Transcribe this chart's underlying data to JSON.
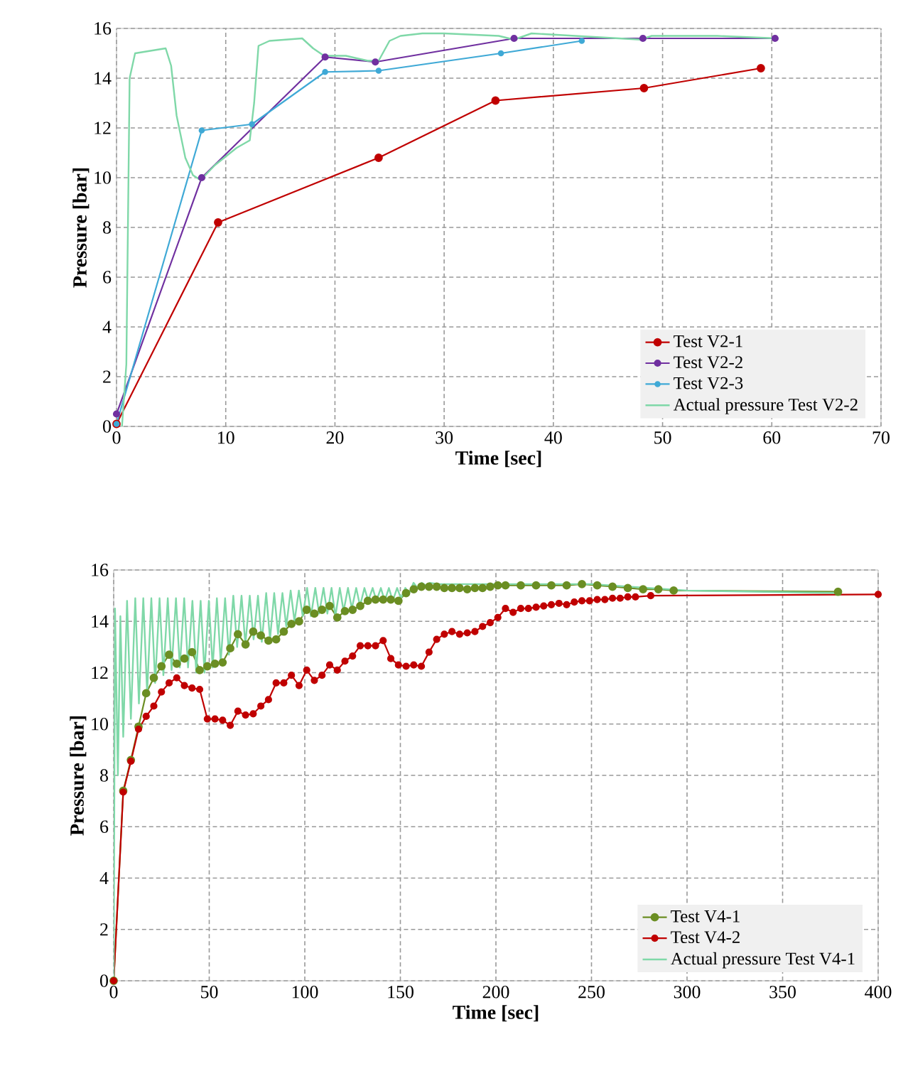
{
  "chart_data": [
    {
      "type": "line",
      "xlabel": "Time [sec]",
      "ylabel": "Pressure [bar]",
      "xlim": [
        0,
        70
      ],
      "ylim": [
        0,
        16
      ],
      "xticks": [
        0,
        10,
        20,
        30,
        40,
        50,
        60,
        70
      ],
      "yticks": [
        0,
        2,
        4,
        6,
        8,
        10,
        12,
        14,
        16
      ],
      "grid": true,
      "legend": "bottom right",
      "series": [
        {
          "name": "Test V2-1",
          "color": "#c00000",
          "marker": "circle",
          "x": [
            0,
            9.3,
            24,
            34.7,
            48.3,
            59
          ],
          "values": [
            0.1,
            8.2,
            10.8,
            13.1,
            13.6,
            14.4
          ]
        },
        {
          "name": "Test V2-2",
          "color": "#7030a0",
          "marker": "circle",
          "x": [
            0,
            7.8,
            19.1,
            23.7,
            36.4,
            48.2,
            60.3
          ],
          "values": [
            0.5,
            10.0,
            14.85,
            14.65,
            15.6,
            15.6,
            15.6
          ]
        },
        {
          "name": "Test V2-3",
          "color": "#3fa9d6",
          "marker": "circle",
          "x": [
            0,
            7.8,
            12.4,
            19.1,
            24.0,
            35.2,
            42.6
          ],
          "values": [
            0.1,
            11.9,
            12.15,
            14.25,
            14.3,
            15.0,
            15.5
          ]
        },
        {
          "name": "Actual pressure Test V2-2",
          "color": "#7fd8a8",
          "marker": "none",
          "x": [
            0.5,
            0.9,
            1.2,
            1.7,
            4.5,
            5.0,
            5.5,
            6.3,
            7.0,
            7.7,
            9.0,
            11.0,
            12.2,
            12.6,
            13.0,
            14.0,
            17.0,
            18.0,
            19.0,
            21.0,
            23.0,
            24.0,
            25.0,
            26.0,
            28.0,
            30.0,
            35.0,
            36.4,
            38.0,
            42.0,
            48.0,
            49.0,
            55.0,
            60.5
          ],
          "values": [
            0,
            2.5,
            14.0,
            15.0,
            15.2,
            14.5,
            12.5,
            10.8,
            10.1,
            9.9,
            10.5,
            11.2,
            11.5,
            13.0,
            15.3,
            15.5,
            15.6,
            15.2,
            14.9,
            14.9,
            14.7,
            14.7,
            15.5,
            15.7,
            15.8,
            15.8,
            15.7,
            15.55,
            15.8,
            15.7,
            15.55,
            15.7,
            15.7,
            15.6
          ]
        }
      ]
    },
    {
      "type": "line",
      "xlabel": "Time [sec]",
      "ylabel": "Pressure [bar]",
      "xlim": [
        0,
        400
      ],
      "ylim": [
        0,
        16
      ],
      "xticks": [
        0,
        50,
        100,
        150,
        200,
        250,
        300,
        350,
        400
      ],
      "yticks": [
        0,
        2,
        4,
        6,
        8,
        10,
        12,
        14,
        16
      ],
      "grid": true,
      "legend": "bottom right",
      "series": [
        {
          "name": "Test V4-1",
          "color": "#6b8e23",
          "marker": "circle",
          "x": [
            0,
            5,
            9,
            13,
            17,
            21,
            25,
            29,
            33,
            37,
            41,
            45,
            49,
            53,
            57,
            61,
            65,
            69,
            73,
            77,
            81,
            85,
            89,
            93,
            97,
            101,
            105,
            109,
            113,
            117,
            121,
            125,
            129,
            133,
            137,
            141,
            145,
            149,
            153,
            157,
            161,
            165,
            169,
            173,
            177,
            181,
            185,
            189,
            193,
            197,
            201,
            205,
            213,
            221,
            229,
            237,
            245,
            253,
            261,
            269,
            277,
            285,
            293,
            379
          ],
          "values": [
            0,
            7.4,
            8.6,
            9.9,
            11.2,
            11.8,
            12.25,
            12.7,
            12.35,
            12.55,
            12.8,
            12.1,
            12.25,
            12.35,
            12.4,
            12.95,
            13.5,
            13.1,
            13.6,
            13.45,
            13.25,
            13.3,
            13.6,
            13.9,
            14.0,
            14.45,
            14.3,
            14.45,
            14.6,
            14.15,
            14.4,
            14.45,
            14.6,
            14.8,
            14.85,
            14.85,
            14.85,
            14.8,
            15.1,
            15.25,
            15.35,
            15.35,
            15.35,
            15.3,
            15.3,
            15.3,
            15.25,
            15.3,
            15.3,
            15.35,
            15.4,
            15.4,
            15.4,
            15.4,
            15.4,
            15.4,
            15.45,
            15.4,
            15.35,
            15.3,
            15.25,
            15.25,
            15.2,
            15.15
          ]
        },
        {
          "name": "Test V4-2",
          "color": "#c00000",
          "marker": "circle",
          "x": [
            0,
            5,
            9,
            13,
            17,
            21,
            25,
            29,
            33,
            37,
            41,
            45,
            49,
            53,
            57,
            61,
            65,
            69,
            73,
            77,
            81,
            85,
            89,
            93,
            97,
            101,
            105,
            109,
            113,
            117,
            121,
            125,
            129,
            133,
            137,
            141,
            145,
            149,
            153,
            157,
            161,
            165,
            169,
            173,
            177,
            181,
            185,
            189,
            193,
            197,
            201,
            205,
            209,
            213,
            217,
            221,
            225,
            229,
            233,
            237,
            241,
            245,
            249,
            253,
            257,
            261,
            265,
            269,
            273,
            281,
            400
          ],
          "values": [
            0,
            7.35,
            8.55,
            9.8,
            10.3,
            10.7,
            11.25,
            11.6,
            11.8,
            11.5,
            11.4,
            11.35,
            10.2,
            10.2,
            10.15,
            9.95,
            10.5,
            10.35,
            10.4,
            10.7,
            10.95,
            11.6,
            11.6,
            11.9,
            11.5,
            12.1,
            11.7,
            11.9,
            12.3,
            12.1,
            12.45,
            12.65,
            13.05,
            13.05,
            13.05,
            13.25,
            12.55,
            12.3,
            12.25,
            12.3,
            12.25,
            12.8,
            13.3,
            13.5,
            13.6,
            13.5,
            13.55,
            13.6,
            13.8,
            13.95,
            14.15,
            14.5,
            14.35,
            14.5,
            14.5,
            14.55,
            14.6,
            14.65,
            14.7,
            14.65,
            14.75,
            14.8,
            14.8,
            14.85,
            14.85,
            14.9,
            14.9,
            14.95,
            14.95,
            15.0,
            15.05
          ]
        },
        {
          "name": "Actual pressure Test V4-1",
          "color": "#7fd8a8",
          "marker": "none",
          "x": [
            0,
            0.7,
            2.2,
            3.5,
            5,
            7,
            9,
            11.3,
            13.2,
            15.5,
            17.5,
            19.7,
            21.7,
            24,
            26,
            28.3,
            30.3,
            32.6,
            34.6,
            36.9,
            38.9,
            41.2,
            43.2,
            45.5,
            47.5,
            49.8,
            51.8,
            54,
            56,
            58.3,
            60.3,
            62.6,
            64.6,
            66.9,
            68.9,
            71.2,
            73.2,
            75.5,
            77.5,
            79.8,
            81.8,
            84,
            86,
            88.3,
            90.3,
            92.6,
            94.6,
            96.9,
            98.9,
            101.2,
            103.2,
            105.5,
            107.5,
            109.8,
            111.8,
            114,
            116,
            118.3,
            120.3,
            122.6,
            124.6,
            126.9,
            128.9,
            131.2,
            133.2,
            135.5,
            137.5,
            139.8,
            141.8,
            144,
            146,
            148.3,
            150.3,
            152.6,
            154.6,
            156.9,
            158.9,
            161.2,
            163.2,
            165.5,
            170,
            200,
            250,
            300,
            380
          ],
          "values": [
            0,
            14.5,
            8,
            14.2,
            9.5,
            14.8,
            10.2,
            14.9,
            10.8,
            14.9,
            11.2,
            14.9,
            11.6,
            14.9,
            11.9,
            14.9,
            12.1,
            14.9,
            12.2,
            14.9,
            12.2,
            14.8,
            12.0,
            14.8,
            12.0,
            14.8,
            12.2,
            14.9,
            12.4,
            14.9,
            12.7,
            15.0,
            13.0,
            15.0,
            13.1,
            15.0,
            13.3,
            15.0,
            13.2,
            15.1,
            13.3,
            15.1,
            13.5,
            15.1,
            13.8,
            15.2,
            14.0,
            15.2,
            14.2,
            15.3,
            14.2,
            15.3,
            14.3,
            15.3,
            14.3,
            15.3,
            14.2,
            15.3,
            14.4,
            15.3,
            14.5,
            15.3,
            14.6,
            15.3,
            14.8,
            15.3,
            14.8,
            15.3,
            14.8,
            15.3,
            14.8,
            15.3,
            14.9,
            15.3,
            15.1,
            15.5,
            15.3,
            15.5,
            15.4,
            15.5,
            15.45,
            15.45,
            15.45,
            15.2,
            15.1
          ]
        }
      ]
    }
  ]
}
